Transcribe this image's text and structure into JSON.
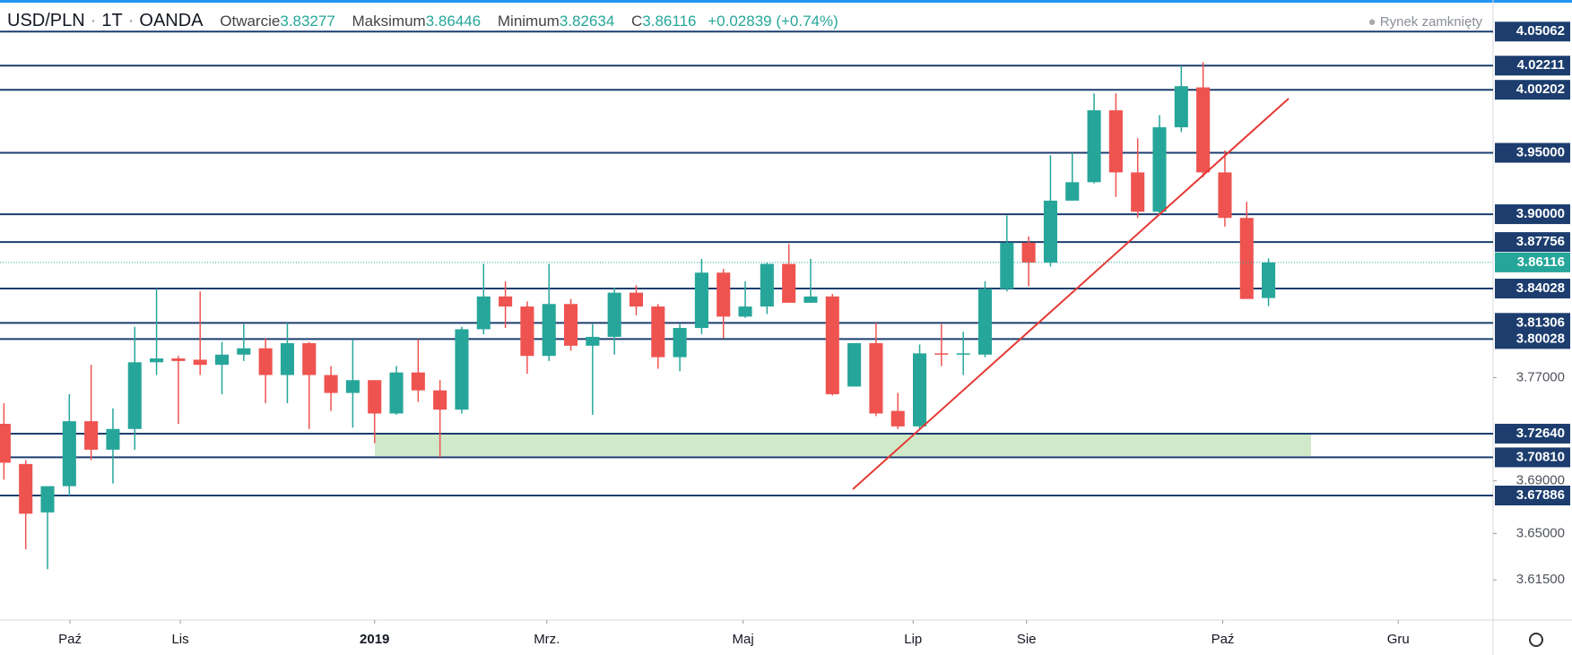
{
  "chart_data": {
    "type": "candlestick",
    "title": "USD/PLN",
    "interval": "1T",
    "source": "OANDA",
    "header": {
      "open_label": "Otwarcie",
      "high_label": "Maksimum",
      "low_label": "Minimum",
      "close_label": "C",
      "change": "+0.02839 (+0.74%)"
    },
    "status": "Rynek zamknięty",
    "open": [
      3.734,
      3.703,
      3.666,
      3.686,
      3.736,
      3.714,
      3.73,
      3.782,
      3.785,
      3.784,
      3.78,
      3.788,
      3.793,
      3.772,
      3.797,
      3.772,
      3.758,
      3.768,
      3.742,
      3.774,
      3.76,
      3.745,
      3.808,
      3.834,
      3.826,
      3.787,
      3.828,
      3.795,
      3.802,
      3.837,
      3.826,
      3.786,
      3.809,
      3.853,
      3.818,
      3.826,
      3.86,
      3.829,
      3.834,
      3.763,
      3.797,
      3.744,
      3.732,
      3.789,
      3.788,
      3.788,
      3.84,
      3.877,
      3.861,
      3.911,
      3.926,
      3.985,
      3.934,
      3.902,
      3.971,
      4.004,
      3.934,
      3.897,
      3.83277
    ],
    "high": [
      3.75,
      3.706,
      3.683,
      3.757,
      3.78,
      3.746,
      3.81,
      3.84,
      3.787,
      3.838,
      3.798,
      3.812,
      3.801,
      3.813,
      3.798,
      3.779,
      3.8,
      3.768,
      3.779,
      3.8,
      3.768,
      3.81,
      3.86,
      3.846,
      3.83,
      3.86,
      3.832,
      3.812,
      3.841,
      3.843,
      3.828,
      3.812,
      3.864,
      3.856,
      3.846,
      3.861,
      3.876,
      3.864,
      3.836,
      3.797,
      3.813,
      3.758,
      3.796,
      3.812,
      3.806,
      3.846,
      3.899,
      3.882,
      3.948,
      3.95,
      3.999,
      3.999,
      3.962,
      3.981,
      4.022,
      4.025,
      3.952,
      3.91,
      3.86446
    ],
    "low": [
      3.691,
      3.638,
      3.623,
      3.679,
      3.706,
      3.688,
      3.714,
      3.772,
      3.734,
      3.772,
      3.757,
      3.783,
      3.75,
      3.75,
      3.73,
      3.744,
      3.731,
      3.719,
      3.741,
      3.751,
      3.708,
      3.742,
      3.804,
      3.809,
      3.773,
      3.783,
      3.791,
      3.741,
      3.788,
      3.819,
      3.777,
      3.775,
      3.804,
      3.801,
      3.817,
      3.82,
      3.829,
      3.829,
      3.756,
      3.763,
      3.74,
      3.73,
      3.73,
      3.779,
      3.772,
      3.786,
      3.838,
      3.842,
      3.858,
      3.911,
      3.925,
      3.914,
      3.897,
      3.9,
      3.967,
      3.93,
      3.89,
      3.832,
      3.82634
    ],
    "close": [
      3.704,
      3.665,
      3.686,
      3.736,
      3.714,
      3.73,
      3.782,
      3.785,
      3.783,
      3.78,
      3.788,
      3.793,
      3.772,
      3.797,
      3.772,
      3.758,
      3.768,
      3.742,
      3.774,
      3.76,
      3.745,
      3.808,
      3.834,
      3.826,
      3.787,
      3.828,
      3.795,
      3.802,
      3.837,
      3.826,
      3.786,
      3.809,
      3.853,
      3.818,
      3.826,
      3.86,
      3.829,
      3.834,
      3.757,
      3.797,
      3.742,
      3.732,
      3.789,
      3.788,
      3.789,
      3.84,
      3.877,
      3.861,
      3.911,
      3.926,
      3.985,
      3.934,
      3.902,
      3.971,
      4.005,
      3.934,
      3.897,
      3.832,
      3.86116
    ],
    "up_color": "#26a69a",
    "down_color": "#ef5350",
    "level_color": "#1c3d6e",
    "log_scale": true,
    "ylim": [
      3.585,
      4.075
    ],
    "yticks": [
      {
        "value": 3.77,
        "label": "3.77000"
      },
      {
        "value": 3.69,
        "label": "3.69000"
      },
      {
        "value": 3.65,
        "label": "3.65000"
      },
      {
        "value": 3.615,
        "label": "3.61500"
      }
    ],
    "levels": [
      4.05062,
      4.02211,
      4.00202,
      {
        "value": 3.95,
        "label": "3.95000"
      },
      {
        "value": 3.9,
        "label": "3.90000"
      },
      3.87756,
      3.84028,
      3.81306,
      3.80028,
      {
        "value": 3.7264,
        "label": "3.72640"
      },
      {
        "value": 3.7081,
        "label": "3.70810"
      },
      3.67886
    ],
    "xlim": [
      -0.18,
      68.3
    ],
    "xticks": [
      {
        "value": 3.03,
        "label": "Paź"
      },
      {
        "value": 8.09,
        "label": "Lis"
      },
      {
        "value": 17.0,
        "label": "2019"
      },
      {
        "value": 24.9,
        "label": "Mrz."
      },
      {
        "value": 33.9,
        "label": "Maj"
      },
      {
        "value": 41.7,
        "label": "Lip"
      },
      {
        "value": 46.9,
        "label": "Sie"
      },
      {
        "value": 55.9,
        "label": "Paź"
      },
      {
        "value": 63.95,
        "label": "Gru"
      }
    ]
  }
}
